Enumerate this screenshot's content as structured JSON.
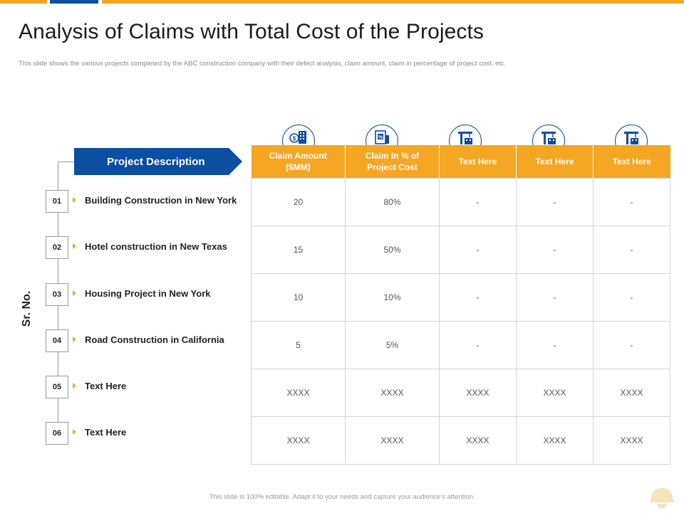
{
  "title": "Analysis of Claims with Total Cost of the Projects",
  "subtitle": "This slide shows the various projects completed by the ABC construction company with their defect analysis, claim amount,  claim in percentage of project cost, etc.",
  "sr_label": "Sr. No.",
  "project_header": "Project Description",
  "columns": [
    {
      "label": "Claim Amount ($MM)",
      "icon": "money-building-icon"
    },
    {
      "label": "Claim In % of Project Cost",
      "icon": "percent-document-icon"
    },
    {
      "label": "Text Here",
      "icon": "crane-icon"
    },
    {
      "label": "Text Here",
      "icon": "crane-icon"
    },
    {
      "label": "Text Here",
      "icon": "crane-icon"
    }
  ],
  "rows": [
    {
      "num": "01",
      "desc": "Building Construction  in New York",
      "cells": [
        "20",
        "80%",
        "-",
        "-",
        "-"
      ]
    },
    {
      "num": "02",
      "desc": "Hotel construction  in New Texas",
      "cells": [
        "15",
        "50%",
        "-",
        "-",
        "-"
      ]
    },
    {
      "num": "03",
      "desc": "Housing  Project in New York",
      "cells": [
        "10",
        "10%",
        "-",
        "-",
        "-"
      ]
    },
    {
      "num": "04",
      "desc": "Road Construction  in California",
      "cells": [
        "5",
        "5%",
        "-",
        "-",
        "-"
      ]
    },
    {
      "num": "05",
      "desc": "Text Here",
      "cells": [
        "XXXX",
        "XXXX",
        "XXXX",
        "XXXX",
        "XXXX"
      ]
    },
    {
      "num": "06",
      "desc": "Text Here",
      "cells": [
        "XXXX",
        "XXXX",
        "XXXX",
        "XXXX",
        "XXXX"
      ]
    }
  ],
  "footer": "This slide is 100% editable.  Adapt it to your needs and capture your audience's attention.",
  "colors": {
    "accent": "#f5a623",
    "brand": "#0b4ea2"
  }
}
